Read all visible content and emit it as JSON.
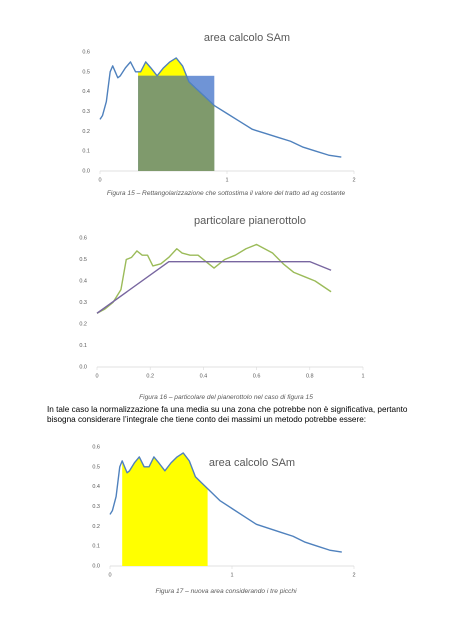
{
  "chart_data": [
    {
      "type": "line",
      "title": "area calcolo SAm",
      "caption": "Figura 15 – Rettangolarizzazione che sottostima il valore del tratto ad ag costante",
      "xlim": [
        0,
        2
      ],
      "xticks": [
        0,
        1,
        2
      ],
      "ylim": [
        0,
        0.6
      ],
      "yticks": [
        {
          "value": 0,
          "label": "0.0"
        },
        {
          "value": 0.1,
          "label": "0.1"
        },
        {
          "value": 0.2,
          "label": "0.2"
        },
        {
          "value": 0.3,
          "label": "0.3"
        },
        {
          "value": 0.4,
          "label": "0.4"
        },
        {
          "value": 0.5,
          "label": "0.5"
        },
        {
          "value": 0.6,
          "label": "0.6"
        }
      ],
      "series": [
        {
          "color": "#4f81bd",
          "x": [
            0,
            0.02,
            0.05,
            0.08,
            0.1,
            0.12,
            0.14,
            0.16,
            0.2,
            0.24,
            0.28,
            0.32,
            0.36,
            0.4,
            0.45,
            0.5,
            0.55,
            0.6,
            0.65,
            0.7,
            0.75,
            0.8,
            0.9,
            1.0,
            1.1,
            1.2,
            1.3,
            1.4,
            1.5,
            1.6,
            1.7,
            1.8,
            1.9
          ],
          "values": [
            0.26,
            0.28,
            0.35,
            0.5,
            0.53,
            0.5,
            0.47,
            0.48,
            0.52,
            0.55,
            0.5,
            0.5,
            0.55,
            0.52,
            0.48,
            0.52,
            0.55,
            0.57,
            0.53,
            0.45,
            0.42,
            0.39,
            0.33,
            0.29,
            0.25,
            0.21,
            0.19,
            0.17,
            0.15,
            0.12,
            0.1,
            0.08,
            0.07
          ]
        }
      ],
      "area_fill": {
        "color": "#ffff00",
        "xlim": [
          0.3,
          0.9
        ]
      },
      "rectangle": {
        "color": "#6f94d6",
        "overlap_color": "#7f9a6c",
        "x": [
          0.3,
          0.9
        ],
        "height": 0.48
      }
    },
    {
      "type": "line",
      "title": "particolare pianerottolo",
      "caption": "Figura 16 – particolare del pianerottolo nel caso di figura 15",
      "xlim": [
        0,
        1
      ],
      "xticks": [
        0,
        0.2,
        0.4,
        0.6,
        0.8,
        1
      ],
      "ylim": [
        0,
        0.6
      ],
      "yticks": [
        {
          "value": 0,
          "label": "0.0"
        },
        {
          "value": 0.1,
          "label": "0.1"
        },
        {
          "value": 0.2,
          "label": "0.2"
        },
        {
          "value": 0.3,
          "label": "0.3"
        },
        {
          "value": 0.4,
          "label": "0.4"
        },
        {
          "value": 0.5,
          "label": "0.5"
        },
        {
          "value": 0.6,
          "label": "0.6"
        }
      ],
      "series": [
        {
          "color": "#9bbb59",
          "x": [
            0,
            0.03,
            0.06,
            0.09,
            0.11,
            0.13,
            0.15,
            0.17,
            0.19,
            0.21,
            0.24,
            0.27,
            0.3,
            0.32,
            0.35,
            0.38,
            0.41,
            0.44,
            0.48,
            0.52,
            0.56,
            0.6,
            0.63,
            0.66,
            0.7,
            0.74,
            0.78,
            0.82,
            0.88
          ],
          "values": [
            0.25,
            0.27,
            0.3,
            0.36,
            0.5,
            0.51,
            0.54,
            0.52,
            0.52,
            0.47,
            0.48,
            0.51,
            0.55,
            0.53,
            0.52,
            0.52,
            0.49,
            0.46,
            0.5,
            0.52,
            0.55,
            0.57,
            0.55,
            0.53,
            0.48,
            0.44,
            0.42,
            0.4,
            0.35
          ]
        },
        {
          "color": "#7866a0",
          "x": [
            0,
            0.27,
            0.8,
            0.88
          ],
          "values": [
            0.25,
            0.49,
            0.49,
            0.45
          ]
        }
      ]
    },
    {
      "type": "line",
      "title": "area calcolo SAm",
      "caption": "Figura 17 – nuova area considerando i tre picchi",
      "xlim": [
        0,
        2
      ],
      "xticks": [
        0,
        1,
        2
      ],
      "ylim": [
        0,
        0.6
      ],
      "yticks": [
        {
          "value": 0,
          "label": "0.0"
        },
        {
          "value": 0.1,
          "label": "0.1"
        },
        {
          "value": 0.2,
          "label": "0.2"
        },
        {
          "value": 0.3,
          "label": "0.3"
        },
        {
          "value": 0.4,
          "label": "0.4"
        },
        {
          "value": 0.5,
          "label": "0.5"
        },
        {
          "value": 0.6,
          "label": "0.6"
        }
      ],
      "series": [
        {
          "color": "#4f81bd",
          "x": [
            0,
            0.02,
            0.05,
            0.08,
            0.1,
            0.12,
            0.14,
            0.16,
            0.2,
            0.24,
            0.28,
            0.32,
            0.36,
            0.4,
            0.45,
            0.5,
            0.55,
            0.6,
            0.65,
            0.7,
            0.75,
            0.8,
            0.9,
            1.0,
            1.1,
            1.2,
            1.3,
            1.4,
            1.5,
            1.6,
            1.7,
            1.8,
            1.9
          ],
          "values": [
            0.26,
            0.28,
            0.35,
            0.5,
            0.53,
            0.5,
            0.47,
            0.48,
            0.52,
            0.55,
            0.5,
            0.5,
            0.55,
            0.52,
            0.48,
            0.52,
            0.55,
            0.57,
            0.53,
            0.45,
            0.42,
            0.39,
            0.33,
            0.29,
            0.25,
            0.21,
            0.19,
            0.17,
            0.15,
            0.12,
            0.1,
            0.08,
            0.07
          ]
        }
      ],
      "area_fill": {
        "color": "#ffff00",
        "xlim": [
          0.1,
          0.8
        ]
      }
    }
  ],
  "text": "In tale caso la normalizzazione fa una media su una zona che potrebbe non è significativa, pertanto bisogna considerare l’integrale che tiene conto dei massimi un metodo potrebbe essere:"
}
